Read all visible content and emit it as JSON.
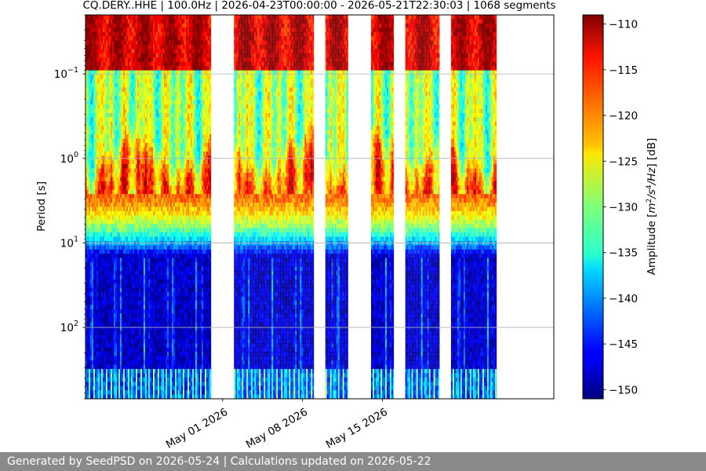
{
  "chart_data": {
    "type": "heatmap",
    "title": "CQ.DERY..HHE | 100.0Hz | 2026-04-23T00:00:00 - 2026-05-21T22:30:03 | 1068 segments",
    "xlabel": "",
    "ylabel": "Period [s]",
    "colorbar_label_parts": [
      "Amplitude [",
      "m",
      "2",
      "/s",
      "4",
      "/Hz",
      "] [dB]"
    ],
    "colorscale": "jet",
    "x_type": "date",
    "x_range": [
      "2026-04-19",
      "2026-05-30"
    ],
    "x_ticks": [
      "May 01 2026",
      "May 08 2026",
      "May 15 2026"
    ],
    "y_scale": "log",
    "y_inverted": true,
    "y_range": [
      0.02,
      700
    ],
    "y_ticks": [
      {
        "base": "10",
        "exp": "−1"
      },
      {
        "base": "10",
        "exp": "0"
      },
      {
        "base": "10",
        "exp": "1"
      },
      {
        "base": "10",
        "exp": "2"
      }
    ],
    "z_range": [
      -151,
      -109
    ],
    "colorbar_ticks": [
      "−110",
      "−115",
      "−120",
      "−125",
      "−130",
      "−135",
      "−140",
      "−145",
      "−150"
    ],
    "grid": true,
    "data_spans": [
      [
        "2026-04-19",
        "2026-04-30"
      ],
      [
        "2026-05-02",
        "2026-05-09"
      ],
      [
        "2026-05-10",
        "2026-05-12"
      ],
      [
        "2026-05-14",
        "2026-05-16"
      ],
      [
        "2026-05-17",
        "2026-05-20"
      ],
      [
        "2026-05-21",
        "2026-05-25"
      ]
    ]
  },
  "footer": {
    "text": "Generated by SeedPSD on 2026-05-24 | Calculations updated on 2026-05-22"
  }
}
